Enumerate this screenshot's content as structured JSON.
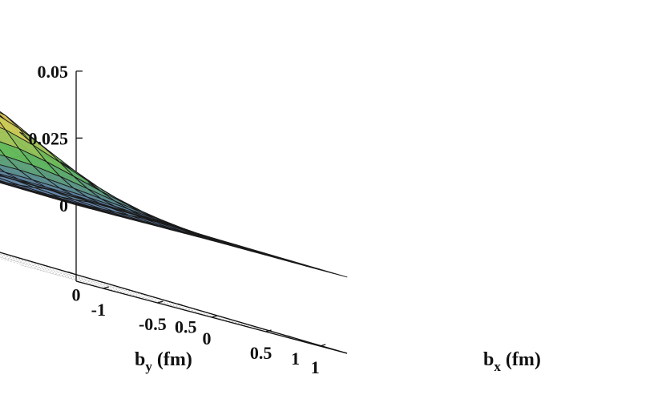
{
  "chart_data": {
    "type": "surface3d",
    "title": "",
    "xlabel": {
      "main": "b",
      "sub": "x",
      "unit": " (fm)"
    },
    "ylabel": {
      "main": "b",
      "sub": "y",
      "unit": " (fm)"
    },
    "zlabel": "",
    "x_range": [
      -1.25,
      1.25
    ],
    "y_range": [
      -1.25,
      1.25
    ],
    "z_range": [
      -0.0285,
      0.05
    ],
    "z_ticks": [
      {
        "value": 0.05,
        "label": "0.05"
      },
      {
        "value": 0.025,
        "label": "0.025"
      },
      {
        "value": 0,
        "label": "0"
      }
    ],
    "x_ticks": [
      {
        "value": -1,
        "label": "-1"
      },
      {
        "value": -0.5,
        "label": "-0.5"
      },
      {
        "value": 0,
        "label": "0"
      },
      {
        "value": 0.5,
        "label": "0.5"
      },
      {
        "value": 1,
        "label": "1"
      }
    ],
    "y_ticks": [
      {
        "value": -1,
        "label": "-1"
      },
      {
        "value": -0.5,
        "label": "-0.5"
      },
      {
        "value": 0,
        "label": "0"
      },
      {
        "value": 0.5,
        "label": "0.5"
      },
      {
        "value": 1,
        "label": "1"
      }
    ],
    "surface": {
      "function": "z = A * exp(-(bx^2 + by^2) / w^2)",
      "amplitude": 0.0315,
      "width_fm": 0.55,
      "grid_points": 20,
      "colormap": [
        "#5b78ad",
        "#5fb85c",
        "#d6cc55",
        "#c75a4e"
      ]
    },
    "grid": true,
    "legend": "none"
  }
}
